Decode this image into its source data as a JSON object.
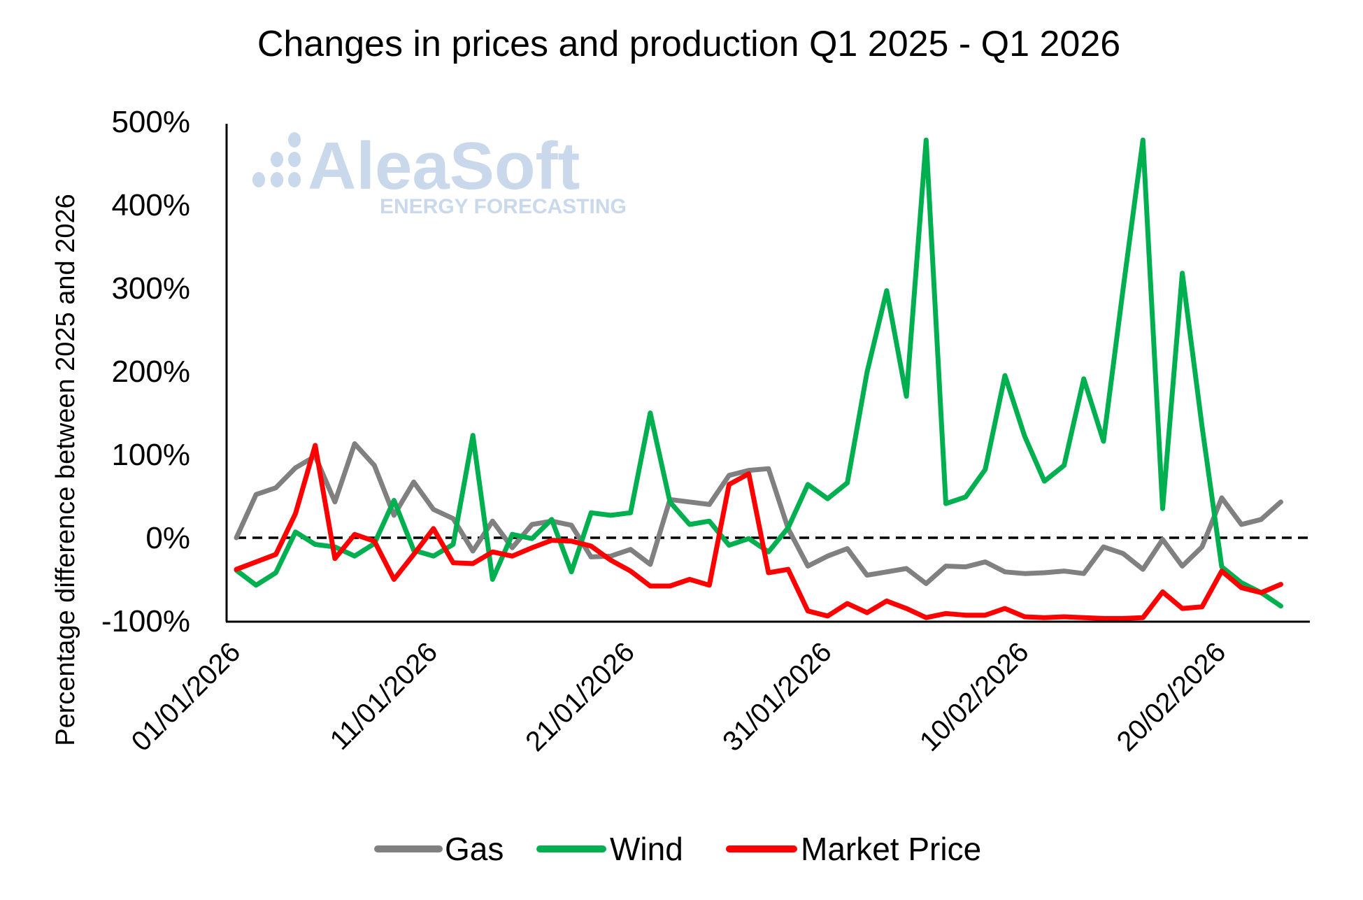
{
  "chart_data": {
    "type": "line",
    "title": "Changes in prices and production Q1 2025 - Q1 2026",
    "xlabel": "",
    "ylabel": "Percentage difference between 2025 and 2026",
    "ylim": [
      -100,
      500
    ],
    "yticks": [
      "500%",
      "400%",
      "300%",
      "200%",
      "100%",
      "0%",
      "-100%"
    ],
    "ytick_values": [
      500,
      400,
      300,
      200,
      100,
      0,
      -100
    ],
    "xtick_labels": [
      "01/01/2026",
      "11/01/2026",
      "21/01/2026",
      "31/01/2026",
      "10/02/2026",
      "20/02/2026"
    ],
    "xtick_indices": [
      0,
      10,
      20,
      30,
      40,
      50
    ],
    "x": [
      "01/01/2026",
      "02/01/2026",
      "03/01/2026",
      "04/01/2026",
      "05/01/2026",
      "06/01/2026",
      "07/01/2026",
      "08/01/2026",
      "09/01/2026",
      "10/01/2026",
      "11/01/2026",
      "12/01/2026",
      "13/01/2026",
      "14/01/2026",
      "15/01/2026",
      "16/01/2026",
      "17/01/2026",
      "18/01/2026",
      "19/01/2026",
      "20/01/2026",
      "21/01/2026",
      "22/01/2026",
      "23/01/2026",
      "24/01/2026",
      "25/01/2026",
      "26/01/2026",
      "27/01/2026",
      "28/01/2026",
      "29/01/2026",
      "30/01/2026",
      "31/01/2026",
      "01/02/2026",
      "02/02/2026",
      "03/02/2026",
      "04/02/2026",
      "05/02/2026",
      "06/02/2026",
      "07/02/2026",
      "08/02/2026",
      "09/02/2026",
      "10/02/2026",
      "11/02/2026",
      "12/02/2026",
      "13/02/2026",
      "14/02/2026",
      "15/02/2026",
      "16/02/2026",
      "17/02/2026",
      "18/02/2026",
      "19/02/2026",
      "20/02/2026",
      "21/02/2026",
      "22/02/2026",
      "23/02/2026"
    ],
    "series": [
      {
        "name": "Gas",
        "color": "#808080",
        "values": [
          0,
          52,
          60,
          84,
          98,
          43,
          113,
          87,
          27,
          67,
          34,
          23,
          -16,
          20,
          -12,
          16,
          20,
          15,
          -23,
          -22,
          -14,
          -32,
          46,
          43,
          40,
          75,
          81,
          83,
          11,
          -34,
          -22,
          -13,
          -45,
          -41,
          -37,
          -55,
          -34,
          -35,
          -29,
          -41,
          -43,
          -42,
          -40,
          -43,
          -11,
          -19,
          -38,
          -2,
          -34,
          -11,
          48,
          16,
          22,
          43
        ]
      },
      {
        "name": "Wind",
        "color": "#00b050",
        "values": [
          -39,
          -57,
          -42,
          7,
          -8,
          -11,
          -22,
          -7,
          45,
          -15,
          -22,
          -8,
          123,
          -50,
          4,
          -1,
          22,
          -41,
          30,
          27,
          30,
          150,
          43,
          16,
          20,
          -9,
          -1,
          -17,
          12,
          64,
          47,
          66,
          199,
          297,
          170,
          478,
          41,
          49,
          82,
          195,
          122,
          68,
          87,
          191,
          116,
          300,
          478,
          35,
          318,
          134,
          -35,
          -54,
          -66,
          -82
        ]
      },
      {
        "name": "Market Price",
        "color": "#ff0000",
        "values": [
          -38,
          -29,
          -20,
          29,
          111,
          -25,
          4,
          -4,
          -50,
          -20,
          11,
          -30,
          -31,
          -17,
          -22,
          -12,
          -3,
          -4,
          -10,
          -27,
          -40,
          -58,
          -58,
          -50,
          -57,
          64,
          77,
          -42,
          -38,
          -88,
          -94,
          -79,
          -90,
          -76,
          -85,
          -96,
          -91,
          -93,
          -93,
          -85,
          -95,
          -96,
          -95,
          -96,
          -97,
          -97,
          -96,
          -65,
          -85,
          -83,
          -40,
          -60,
          -66,
          -56
        ]
      }
    ],
    "reference_line": {
      "value": 0,
      "style": "dashed",
      "color": "#000000"
    },
    "grid": false,
    "legend_position": "bottom"
  },
  "watermark": {
    "brand": "AleaSoft",
    "tagline": "ENERGY FORECASTING",
    "color": "#c9d8ea"
  },
  "legend": [
    {
      "label": "Gas",
      "color": "#808080"
    },
    {
      "label": "Wind",
      "color": "#00b050"
    },
    {
      "label": "Market Price",
      "color": "#ff0000"
    }
  ]
}
